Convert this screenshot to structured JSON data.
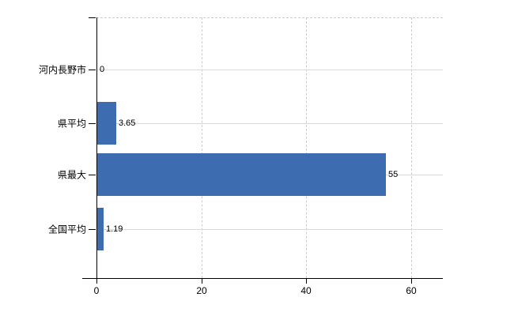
{
  "chart_data": {
    "type": "bar",
    "orientation": "horizontal",
    "title": "",
    "xlabel": "",
    "ylabel": "",
    "categories": [
      "河内長野市",
      "県平均",
      "県最大",
      "全国平均"
    ],
    "values": [
      0,
      3.65,
      55,
      1.19
    ],
    "value_labels": [
      "0",
      "3.65",
      "55",
      "1.19"
    ],
    "x_ticks": [
      0,
      20,
      40,
      60
    ],
    "x_tick_labels": [
      "0",
      "20",
      "40",
      "60"
    ],
    "xlim": [
      0,
      66
    ],
    "grid": true,
    "legend": "none",
    "bar_color": "#3e6cb0",
    "axis_color": "#000000",
    "gridline_color": "#d9d9d9",
    "dashed_gridline_color": "#cccccc",
    "background_color": "#ffffff"
  }
}
